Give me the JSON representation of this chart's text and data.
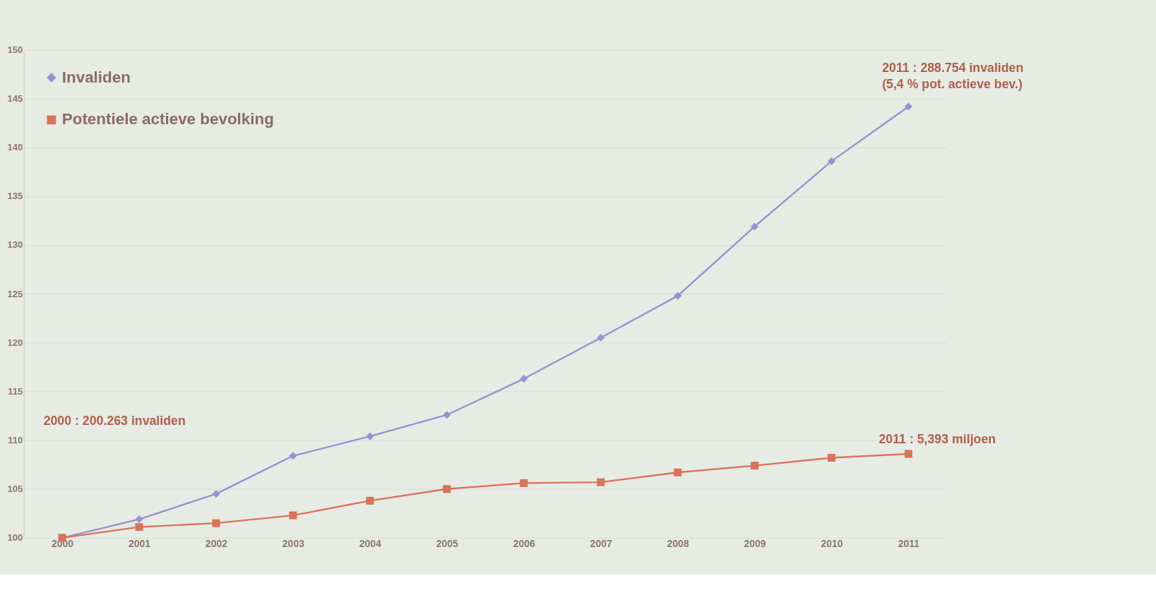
{
  "chart_data": {
    "type": "line",
    "categories": [
      "2000",
      "2001",
      "2002",
      "2003",
      "2004",
      "2005",
      "2006",
      "2007",
      "2008",
      "2009",
      "2010",
      "2011"
    ],
    "series": [
      {
        "name": "Invaliden",
        "color": "#9b8fd3",
        "marker": "diamond",
        "values": [
          100,
          101.9,
          104.5,
          108.4,
          110.4,
          112.6,
          116.3,
          120.5,
          124.8,
          131.9,
          138.6,
          144.2
        ]
      },
      {
        "name": "Potentiele actieve bevolking",
        "color": "#d9735a",
        "marker": "square",
        "values": [
          100,
          101.1,
          101.5,
          102.3,
          103.8,
          105.0,
          105.6,
          105.7,
          106.7,
          107.4,
          108.2,
          108.6
        ]
      }
    ],
    "ylim": [
      100,
      150
    ],
    "yticks": [
      100,
      105,
      110,
      115,
      120,
      125,
      130,
      135,
      140,
      145,
      150
    ],
    "grid": "y",
    "legend": "top left",
    "annotations": [
      "2000 : 200.263 invaliden",
      {
        "text": "2011 : 288.754 invaliden",
        "x": "2011",
        "y": 144.2
      },
      {
        "text": "(5,4 % pot. actieve bev.)",
        "x": "2011",
        "y": 144.2
      },
      {
        "text": "2011 : 5,393 miljoen",
        "x": "2011",
        "y": 108.6
      }
    ]
  }
}
